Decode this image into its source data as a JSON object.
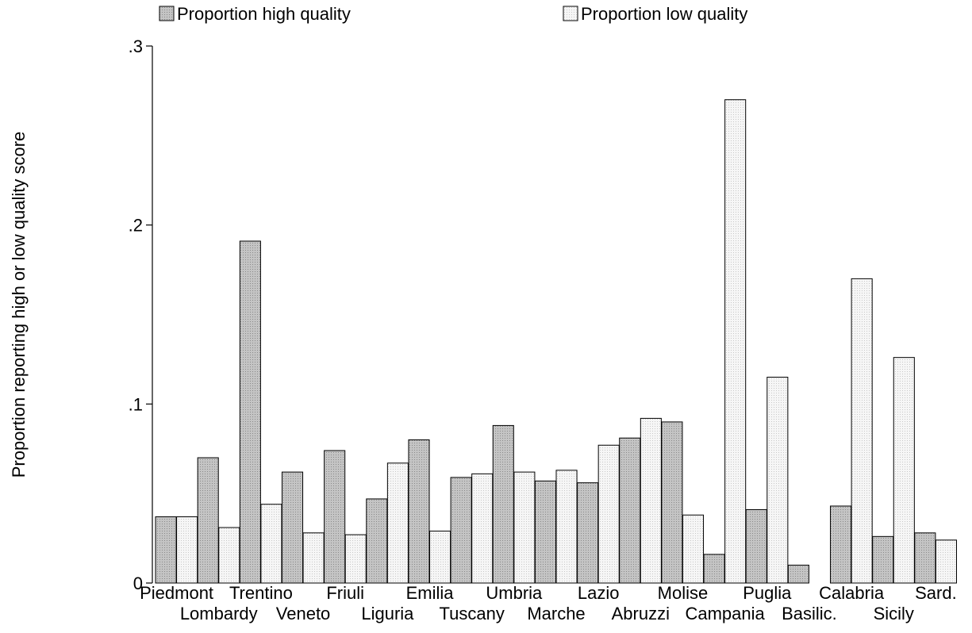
{
  "chart_data": {
    "type": "bar",
    "ylabel": "Proportion reporting high or low quality score",
    "xlabel": "",
    "ylim": [
      0,
      0.3
    ],
    "yticks": [
      {
        "value": 0,
        "label": "0"
      },
      {
        "value": 0.1,
        "label": ".1"
      },
      {
        "value": 0.2,
        "label": ".2"
      },
      {
        "value": 0.3,
        "label": ".3"
      }
    ],
    "grid": false,
    "legend_position": "top",
    "categories": [
      "Piedmont",
      "Lombardy",
      "Trentino",
      "Veneto",
      "Friuli",
      "Liguria",
      "Emilia",
      "Tuscany",
      "Umbria",
      "Marche",
      "Lazio",
      "Abruzzi",
      "Molise",
      "Campania",
      "Puglia",
      "Basilic.",
      "Calabria",
      "Sicily",
      "Sard."
    ],
    "series": [
      {
        "name": "Proportion high quality",
        "pattern": "dotted-gray",
        "values": [
          0.037,
          0.07,
          0.191,
          0.062,
          0.074,
          0.047,
          0.08,
          0.059,
          0.088,
          0.057,
          0.056,
          0.081,
          0.09,
          0.016,
          0.041,
          0.01,
          0.043,
          0.026,
          0.028
        ]
      },
      {
        "name": "Proportion low quality",
        "pattern": "dotted-light",
        "values": [
          0.037,
          0.031,
          0.044,
          0.028,
          0.027,
          0.067,
          0.029,
          0.061,
          0.062,
          0.063,
          0.077,
          0.092,
          0.038,
          0.27,
          0.115,
          0.0,
          0.17,
          0.126,
          0.024
        ]
      }
    ]
  },
  "colors": {
    "high_fill": "#c4c4c4",
    "low_fill": "#f4f4f4",
    "outline": "#000000"
  }
}
